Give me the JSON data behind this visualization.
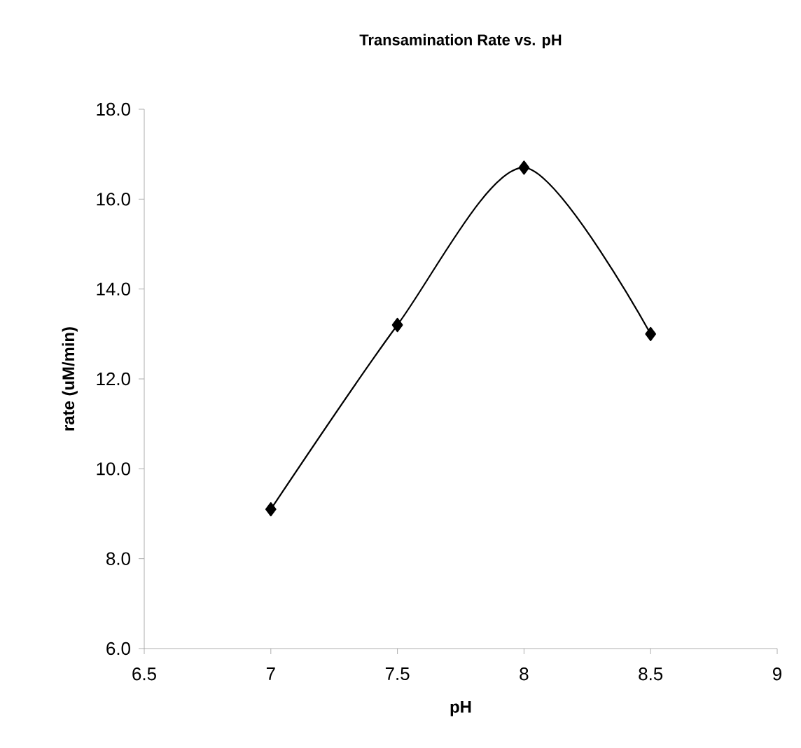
{
  "chart_data": {
    "type": "line",
    "title": "Transamination Rate vs. pH",
    "xlabel": "pH",
    "ylabel": "rate (uM/min)",
    "x": [
      7,
      7.5,
      8,
      8.5
    ],
    "series": [
      {
        "color": "#000000",
        "values": [
          9.1,
          13.2,
          16.7,
          13.0
        ]
      }
    ],
    "xlim": [
      6.5,
      9
    ],
    "xticks": [
      6.5,
      7,
      7.5,
      8,
      8.5,
      9
    ],
    "ylim": [
      6,
      18
    ],
    "yticks": [
      {
        "value": 6,
        "label": "6.0"
      },
      {
        "value": 8,
        "label": "8.0"
      },
      {
        "value": 10,
        "label": "10.0"
      },
      {
        "value": 12,
        "label": "12.0"
      },
      {
        "value": 14,
        "label": "14.0"
      },
      {
        "value": 16,
        "label": "16.0"
      },
      {
        "value": 18,
        "label": "18.0"
      }
    ],
    "grid": false,
    "marker": "diamond",
    "line_style": "solid"
  }
}
